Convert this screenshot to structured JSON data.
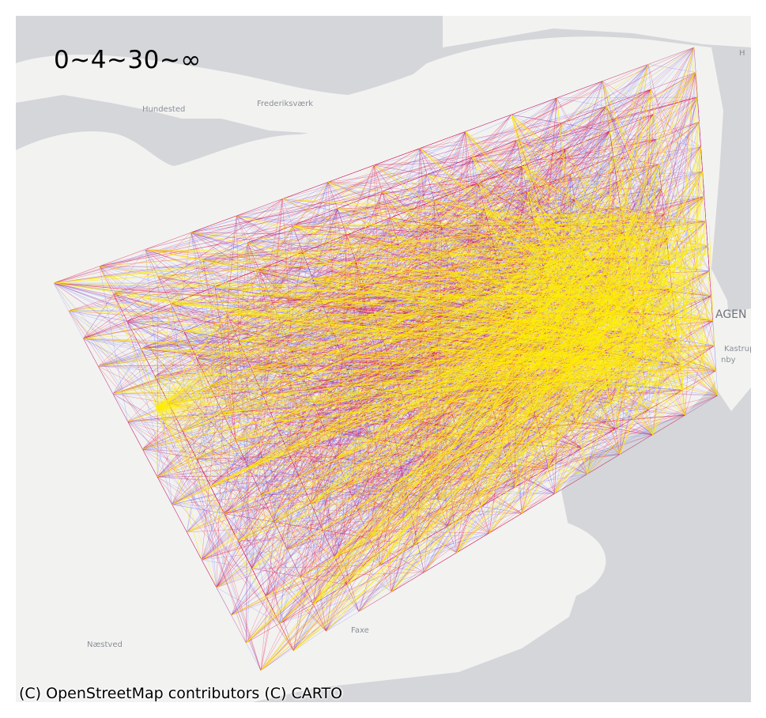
{
  "legend": {
    "title": "0~4~30~∞"
  },
  "attribution": "(C) OpenStreetMap contributors (C) CARTO",
  "places": [
    {
      "name": "Hundested",
      "data_name": "place-hundested"
    },
    {
      "name": "Frederiksværk",
      "data_name": "place-frederiksvaerk"
    },
    {
      "name": "Faxe",
      "data_name": "place-faxe"
    },
    {
      "name": "Næstved",
      "data_name": "place-naestved"
    },
    {
      "name": "Kastrup",
      "data_name": "place-kastrup"
    },
    {
      "name": "AGEN",
      "data_name": "place-kobenhavn-fragment"
    },
    {
      "name": "nby",
      "data_name": "place-dragor-fragment"
    },
    {
      "name": "H",
      "data_name": "place-helsingor-fragment"
    }
  ],
  "colors": {
    "water": "#d4d6d9",
    "land": "#f2f2f1",
    "low": "#4a4aff",
    "mid": "#e8123c",
    "high": "#ffee00"
  }
}
